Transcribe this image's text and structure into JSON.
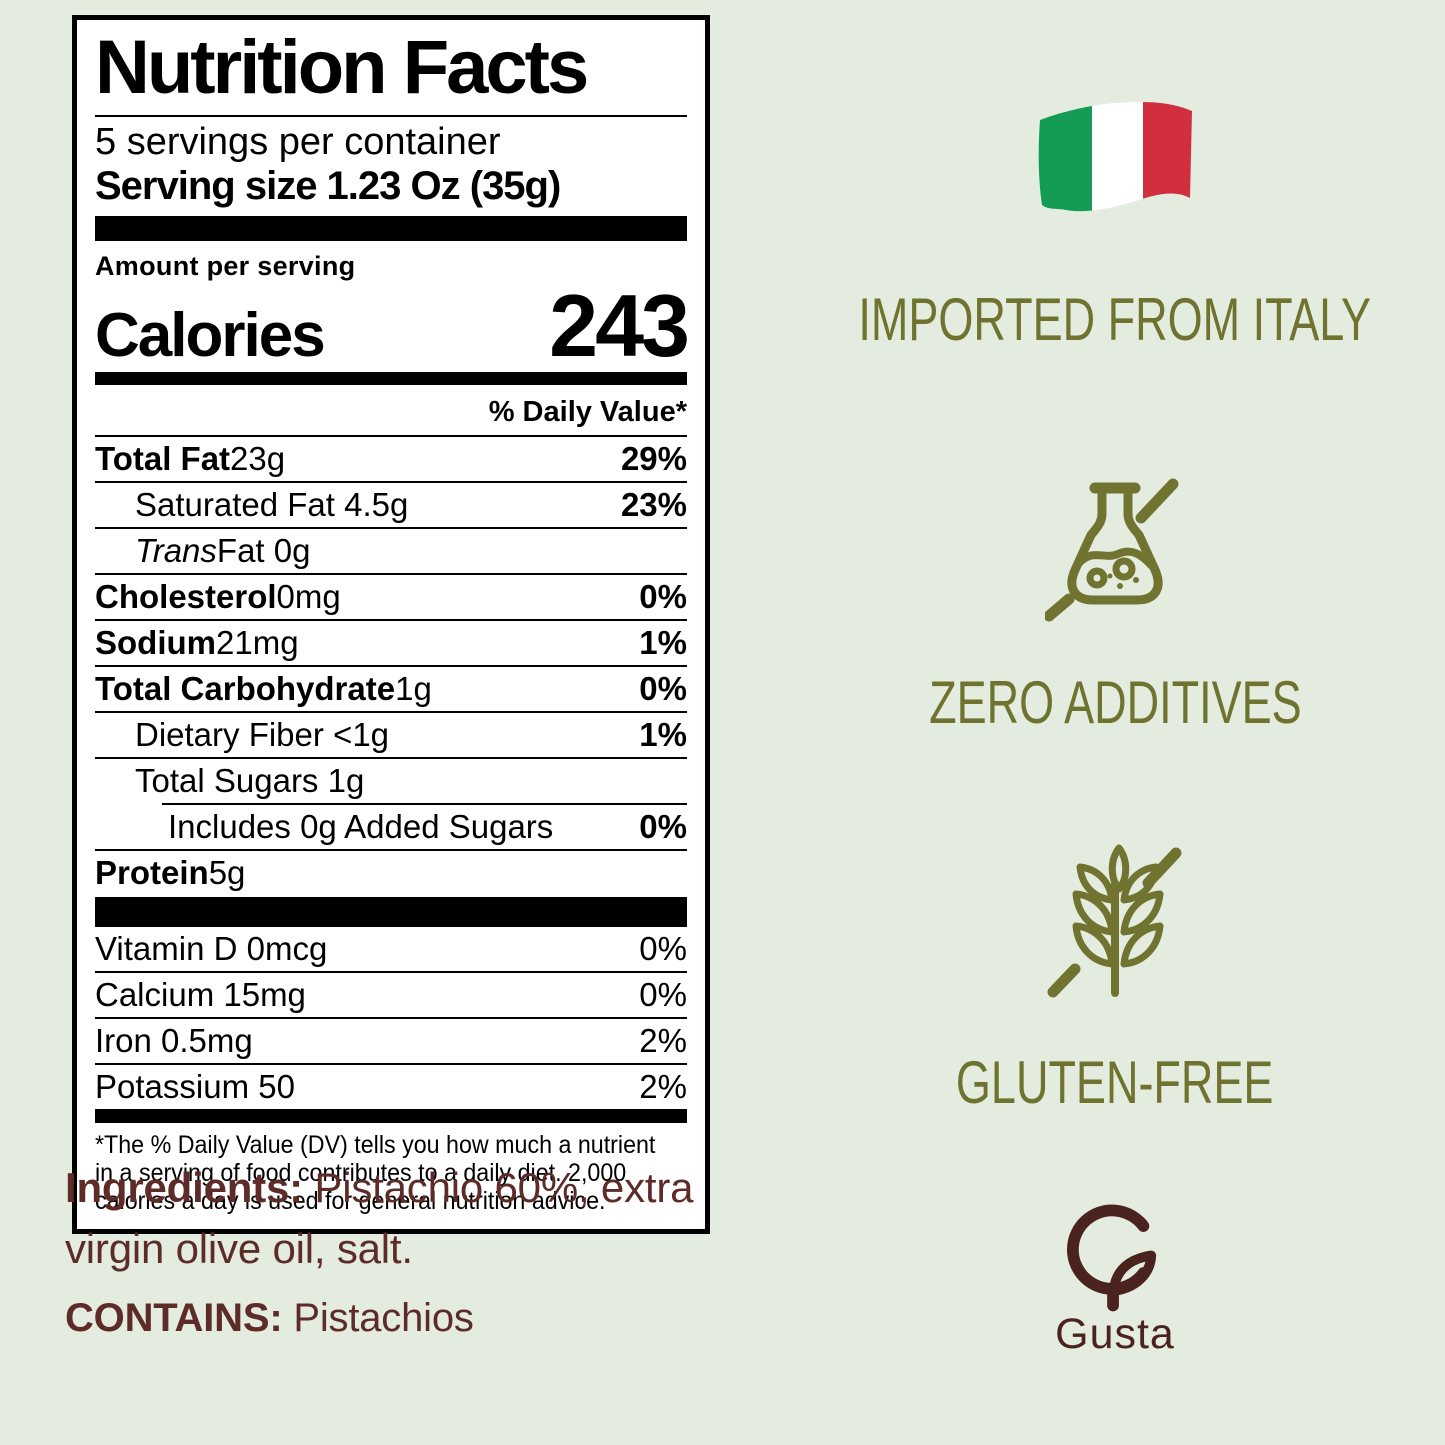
{
  "colors": {
    "background": "#e4ecdf",
    "olive": "#6f7330",
    "maroon_text": "#5d2c28",
    "brand_maroon": "#4b231e",
    "flag_green": "#149b55",
    "flag_red": "#d12f3f",
    "label_ink": "#000000"
  },
  "label": {
    "title": "Nutrition Facts",
    "servings_per_container": "5 servings per container",
    "serving_size": "Serving size 1.23 Oz (35g)",
    "amount_per_serving": "Amount per serving",
    "calories_label": "Calories",
    "calories_value": "243",
    "daily_value_header": "% Daily Value*",
    "rows": [
      {
        "parts": [
          {
            "t": "Total Fat",
            "b": true
          },
          {
            "t": " 23g"
          }
        ],
        "pct": "29%",
        "pctBold": true,
        "indent": 0
      },
      {
        "parts": [
          {
            "t": "Saturated Fat 4.5g"
          }
        ],
        "pct": "23%",
        "pctBold": true,
        "indent": 1
      },
      {
        "parts": [
          {
            "t": "Trans",
            "i": true
          },
          {
            "t": " Fat 0g"
          }
        ],
        "pct": "",
        "indent": 1
      },
      {
        "parts": [
          {
            "t": "Cholesterol",
            "b": true
          },
          {
            "t": " 0mg"
          }
        ],
        "pct": "0%",
        "pctBold": true,
        "indent": 0
      },
      {
        "parts": [
          {
            "t": "Sodium",
            "b": true
          },
          {
            "t": " 21mg"
          }
        ],
        "pct": "1%",
        "pctBold": true,
        "indent": 0
      },
      {
        "parts": [
          {
            "t": "Total Carbohydrate",
            "b": true
          },
          {
            "t": " 1g"
          }
        ],
        "pct": "0%",
        "pctBold": true,
        "indent": 0
      },
      {
        "parts": [
          {
            "t": "Dietary Fiber <1g"
          }
        ],
        "pct": "1%",
        "pctBold": true,
        "indent": 1
      },
      {
        "parts": [
          {
            "t": "Total Sugars 1g"
          }
        ],
        "pct": "",
        "indent": 1,
        "ruleIndent": true
      },
      {
        "parts": [
          {
            "t": "Includes 0g Added Sugars"
          }
        ],
        "pct": "0%",
        "pctBold": true,
        "indent": 2
      },
      {
        "parts": [
          {
            "t": "Protein",
            "b": true
          },
          {
            "t": " 5g"
          }
        ],
        "pct": "",
        "indent": 0,
        "last": true
      }
    ],
    "micronutrients": [
      {
        "t": "Vitamin D 0mcg",
        "pct": "0%"
      },
      {
        "t": "Calcium 15mg",
        "pct": "0%"
      },
      {
        "t": "Iron 0.5mg",
        "pct": "2%"
      },
      {
        "t": "Potassium 50",
        "pct": "2%"
      }
    ],
    "footnote_lines": [
      "*The % Daily Value (DV) tells you how much a nutrient",
      "in a serving of food contributes to a daily diet. 2,000",
      "calories a day is used for general nutrition advice."
    ]
  },
  "ingredients": {
    "label": "Ingredients:",
    "text": " Pistachio 60%, extra virgin olive oil, salt."
  },
  "contains": {
    "label": "CONTAINS:",
    "text": " Pistachios"
  },
  "badges": [
    {
      "icon": "italy-flag-icon",
      "label": "IMPORTED FROM ITALY"
    },
    {
      "icon": "no-additives-flask-icon",
      "label": "ZERO ADDITIVES"
    },
    {
      "icon": "gluten-free-wheat-icon",
      "label": "GLUTEN-FREE"
    }
  ],
  "brand": {
    "icon": "gusta-leaf-logo",
    "name": "Gusta"
  }
}
